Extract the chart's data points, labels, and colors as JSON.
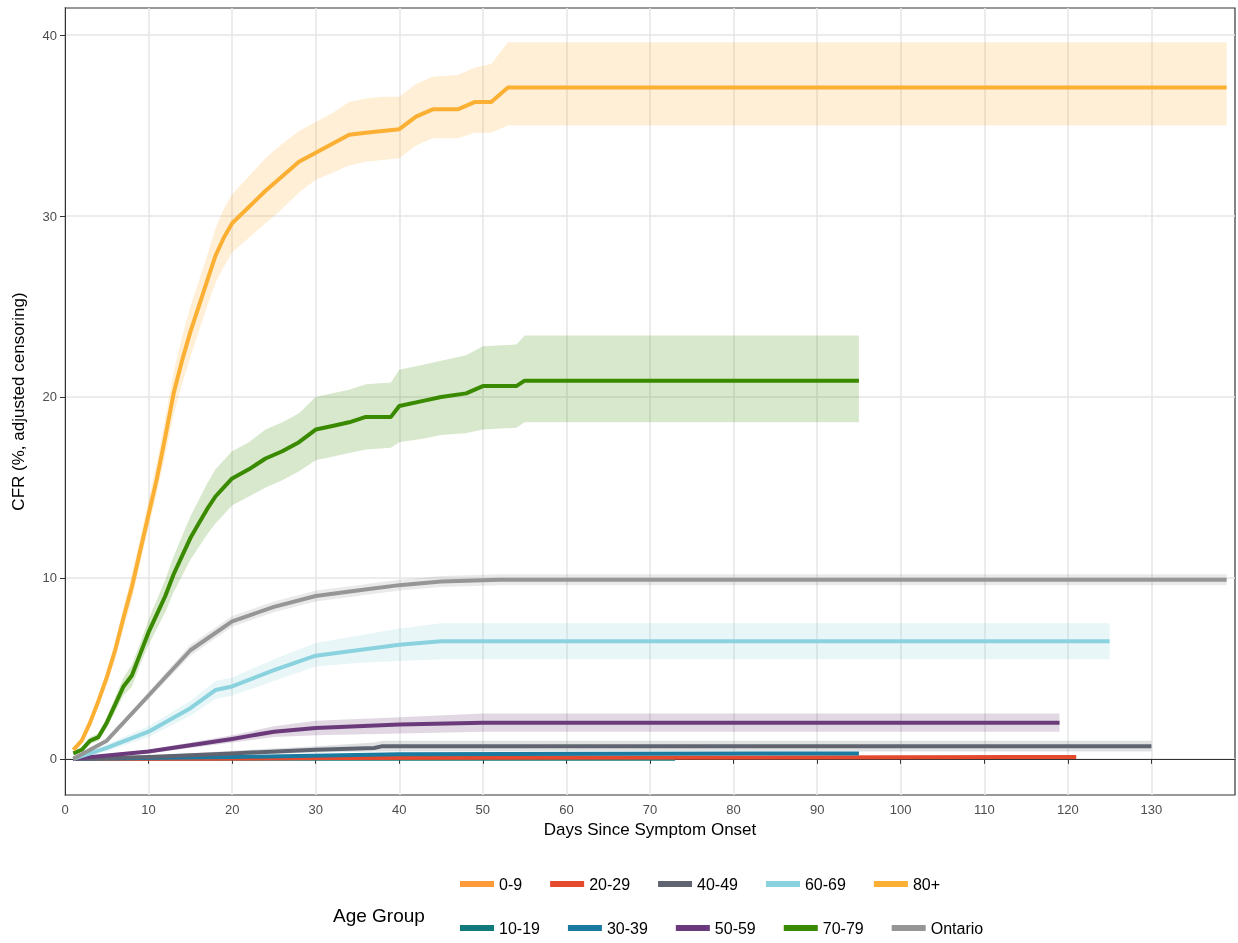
{
  "chart_data": {
    "type": "line",
    "xlabel": "Days Since Symptom Onset",
    "ylabel": "CFR (%, adjusted censoring)",
    "legend_title": "Age Group",
    "xlim": [
      0,
      140
    ],
    "ylim": [
      -2,
      41.5
    ],
    "xticks": [
      0,
      10,
      20,
      30,
      40,
      50,
      60,
      70,
      80,
      90,
      100,
      110,
      120,
      130
    ],
    "yticks": [
      0,
      10,
      20,
      30,
      40
    ],
    "grid": true,
    "legend": "bottom",
    "line_style": "solid",
    "marker": "none",
    "series": [
      {
        "name": "0-9",
        "color": "#ff9b3a"
      },
      {
        "name": "10-19",
        "color": "#127a7a",
        "x": [
          1,
          73
        ],
        "values": [
          0,
          0
        ]
      },
      {
        "name": "20-29",
        "color": "#e64a2e",
        "x": [
          1,
          18,
          32,
          121
        ],
        "values": [
          0,
          0,
          0.05,
          0.1
        ]
      },
      {
        "name": "30-39",
        "color": "#1a7aa0",
        "x": [
          1,
          20,
          40,
          95
        ],
        "values": [
          0,
          0.1,
          0.25,
          0.3
        ]
      },
      {
        "name": "40-49",
        "color": "#5f6470",
        "x": [
          1,
          10,
          20,
          30,
          37,
          38,
          130
        ],
        "values": [
          0,
          0.1,
          0.3,
          0.5,
          0.6,
          0.7,
          0.7
        ],
        "lower": [
          0,
          0.05,
          0.2,
          0.35,
          0.4,
          0.4,
          0.4
        ],
        "upper": [
          0,
          0.15,
          0.45,
          0.7,
          0.9,
          1.0,
          1.0
        ]
      },
      {
        "name": "50-59",
        "color": "#6b3a7a",
        "x": [
          1,
          10,
          20,
          25,
          30,
          40,
          50,
          119
        ],
        "values": [
          0,
          0.4,
          1.1,
          1.5,
          1.7,
          1.9,
          2.0,
          2.0
        ],
        "lower": [
          0,
          0.3,
          0.9,
          1.2,
          1.3,
          1.4,
          1.5,
          1.5
        ],
        "upper": [
          0,
          0.5,
          1.3,
          1.8,
          2.1,
          2.3,
          2.5,
          2.5
        ]
      },
      {
        "name": "60-69",
        "color": "#8ad2de",
        "x": [
          1,
          5,
          10,
          15,
          18,
          20,
          25,
          30,
          35,
          40,
          45,
          125
        ],
        "values": [
          0,
          0.6,
          1.5,
          2.8,
          3.8,
          4,
          4.9,
          5.7,
          6,
          6.3,
          6.5,
          6.5
        ],
        "lower": [
          0,
          0.4,
          1.2,
          2.4,
          3.3,
          3.5,
          4.3,
          5.1,
          5.3,
          5.4,
          5.5,
          5.5
        ],
        "upper": [
          0,
          0.8,
          1.8,
          3.2,
          4.3,
          4.5,
          5.5,
          6.4,
          6.8,
          7.2,
          7.5,
          7.5
        ]
      },
      {
        "name": "70-79",
        "color": "#3a8a00",
        "x": [
          1,
          2,
          3,
          4,
          5,
          6,
          7,
          8,
          9,
          10,
          11,
          12,
          13,
          14,
          15,
          16,
          17,
          18,
          19,
          20,
          22,
          24,
          26,
          28,
          30,
          32,
          34,
          36,
          39,
          40,
          43,
          45,
          48,
          50,
          54,
          55,
          95
        ],
        "values": [
          0.3,
          0.5,
          1,
          1.2,
          2,
          3,
          4,
          4.6,
          5.8,
          7,
          8,
          9,
          10.2,
          11.2,
          12.2,
          13,
          13.8,
          14.5,
          15,
          15.5,
          16,
          16.6,
          17,
          17.5,
          18.2,
          18.4,
          18.6,
          18.9,
          18.9,
          19.5,
          19.8,
          20,
          20.2,
          20.6,
          20.6,
          20.9,
          20.9
        ],
        "lower": [
          0.2,
          0.4,
          0.8,
          1,
          1.7,
          2.6,
          3.5,
          4,
          5.2,
          6.3,
          7.2,
          8.1,
          9.2,
          10.1,
          11,
          11.7,
          12.4,
          13,
          13.5,
          14,
          14.5,
          15,
          15.4,
          15.9,
          16.5,
          16.7,
          16.9,
          17.1,
          17.2,
          17.5,
          17.7,
          17.9,
          18,
          18.2,
          18.3,
          18.6,
          18.6
        ],
        "upper": [
          0.4,
          0.6,
          1.2,
          1.4,
          2.3,
          3.4,
          4.5,
          5.2,
          6.4,
          7.7,
          8.8,
          9.9,
          11.2,
          12.3,
          13.4,
          14.3,
          15.2,
          16,
          16.5,
          17,
          17.5,
          18.2,
          18.6,
          19.1,
          20,
          20.2,
          20.4,
          20.7,
          20.8,
          21.5,
          21.8,
          22,
          22.3,
          22.8,
          22.9,
          23.4,
          23.4
        ]
      },
      {
        "name": "80+",
        "color": "#fbb034",
        "x": [
          1,
          2,
          3,
          4,
          5,
          6,
          7,
          8,
          9,
          10,
          11,
          12,
          13,
          14,
          15,
          16,
          17,
          18,
          19,
          20,
          22,
          24,
          26,
          28,
          30,
          32,
          34,
          36,
          38,
          40,
          42,
          44,
          47,
          49,
          51,
          53,
          139
        ],
        "values": [
          0.5,
          1,
          2,
          3.2,
          4.5,
          6,
          7.8,
          9.5,
          11.5,
          13.5,
          15.5,
          17.8,
          20.2,
          22,
          23.6,
          25,
          26.4,
          27.8,
          28.8,
          29.6,
          30.5,
          31.4,
          32.2,
          33,
          33.5,
          34,
          34.5,
          34.6,
          34.7,
          34.8,
          35.5,
          35.9,
          35.9,
          36.3,
          36.3,
          37.1,
          37.1
        ],
        "lower": [
          0.4,
          0.8,
          1.7,
          2.9,
          4.1,
          5.5,
          7.2,
          8.8,
          10.8,
          12.8,
          14.7,
          16.8,
          19,
          20.7,
          22.2,
          23.6,
          25,
          26.3,
          27.2,
          28,
          28.8,
          29.6,
          30.4,
          31.3,
          32,
          32.4,
          32.8,
          33,
          33.1,
          33.2,
          33.9,
          34.3,
          34.3,
          34.6,
          34.6,
          35,
          35
        ],
        "upper": [
          0.6,
          1.2,
          2.3,
          3.5,
          4.9,
          6.5,
          8.4,
          10.2,
          12.2,
          14.3,
          16.4,
          18.8,
          21.4,
          23.3,
          25,
          26.4,
          27.8,
          29.3,
          30.4,
          31.2,
          32.2,
          33.2,
          34,
          34.7,
          35.2,
          35.7,
          36.3,
          36.5,
          36.6,
          36.6,
          37.3,
          37.7,
          37.8,
          38.2,
          38.4,
          39.6,
          39.6
        ]
      },
      {
        "name": "Ontario",
        "color": "#969696",
        "x": [
          1,
          5,
          10,
          15,
          20,
          25,
          30,
          35,
          40,
          45,
          52,
          139
        ],
        "values": [
          0,
          1,
          3.5,
          6,
          7.6,
          8.4,
          9,
          9.3,
          9.6,
          9.8,
          9.9,
          9.9
        ],
        "lower": [
          0,
          0.9,
          3.3,
          5.7,
          7.3,
          8.1,
          8.7,
          9,
          9.3,
          9.5,
          9.6,
          9.6
        ],
        "upper": [
          0,
          1.1,
          3.7,
          6.3,
          7.9,
          8.7,
          9.3,
          9.6,
          9.9,
          10.1,
          10.2,
          10.2
        ]
      }
    ]
  }
}
